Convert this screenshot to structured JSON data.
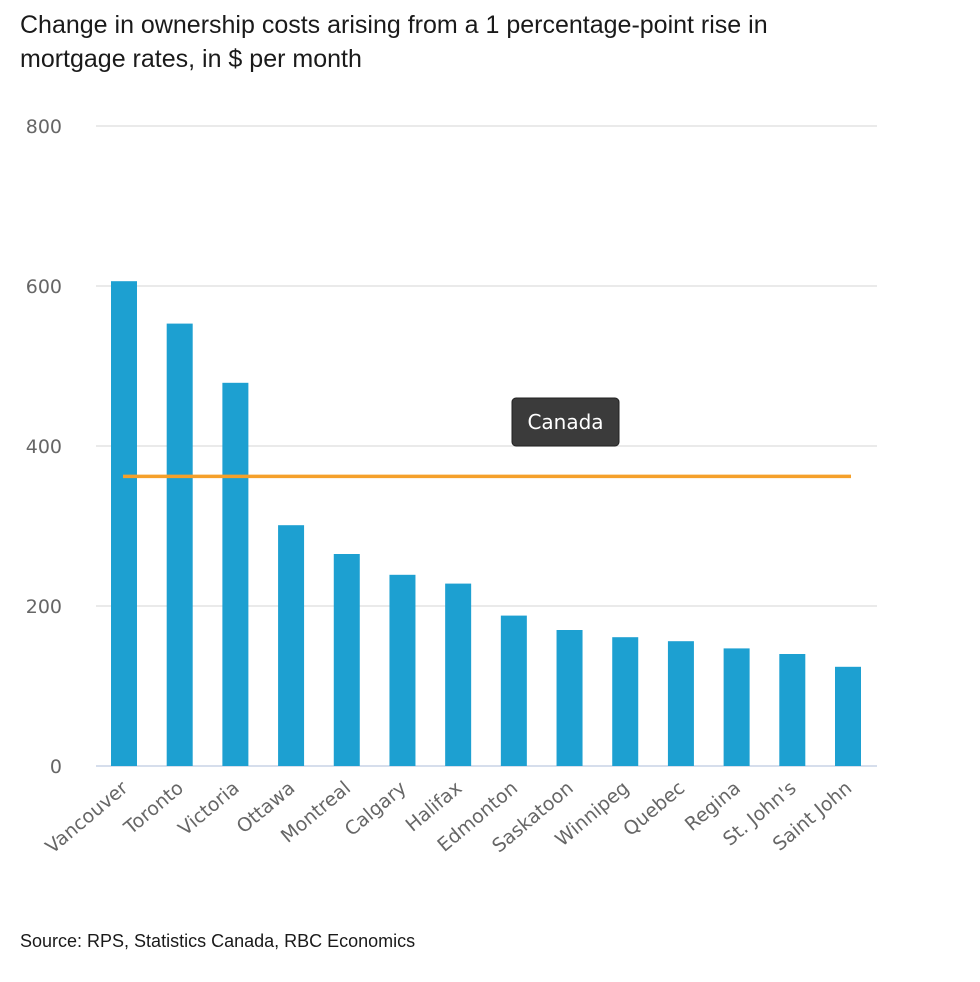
{
  "chart_data": {
    "type": "bar",
    "title": "Change in ownership costs arising from a 1 percentage-point rise in mortgage rates, in $ per month",
    "source": "Source: RPS, Statistics Canada, RBC Economics",
    "categories": [
      "Vancouver",
      "Toronto",
      "Victoria",
      "Ottawa",
      "Montreal",
      "Calgary",
      "Halifax",
      "Edmonton",
      "Saskatoon",
      "Winnipeg",
      "Quebec",
      "Regina",
      "St. John's",
      "Saint John"
    ],
    "series": [
      {
        "values": [
          606,
          553,
          479,
          301,
          265,
          239,
          228,
          188,
          170,
          161,
          156,
          147,
          140,
          124
        ],
        "color": "#1da0d1"
      }
    ],
    "reference_line": {
      "label": "Canada",
      "value": 362,
      "color": "#f5a02a"
    },
    "yticks": [
      0,
      200,
      400,
      600,
      800
    ],
    "ylim": [
      0,
      800
    ],
    "grid": true,
    "legend": "none"
  }
}
